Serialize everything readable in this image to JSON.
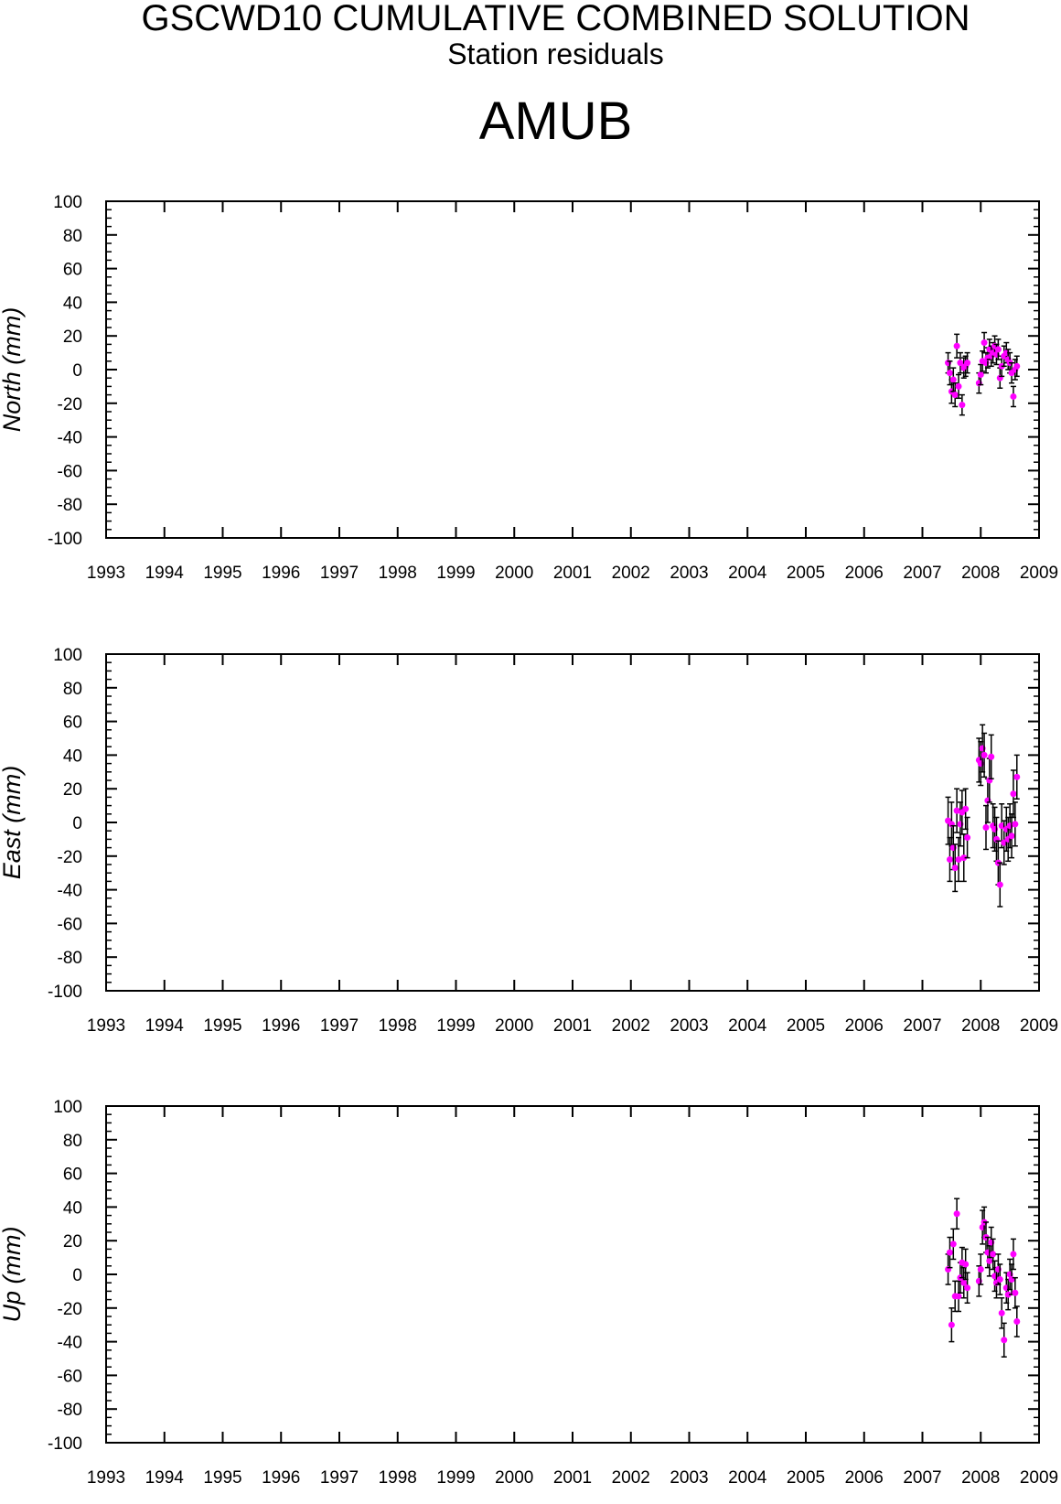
{
  "header": {
    "title": "GSCWD10 CUMULATIVE COMBINED SOLUTION",
    "subtitle": "Station residuals",
    "station": "AMUB"
  },
  "colors": {
    "point": "#ff00ff",
    "errorbar": "#000000",
    "axis": "#000000"
  },
  "chart_data": [
    {
      "type": "scatter",
      "ylabel": "North (mm)",
      "xlim": [
        1993,
        2009
      ],
      "ylim": [
        -100,
        100
      ],
      "xticks": [
        "1993",
        "1994",
        "1995",
        "1996",
        "1997",
        "1998",
        "1999",
        "2000",
        "2001",
        "2002",
        "2003",
        "2004",
        "2005",
        "2006",
        "2007",
        "2008",
        "2009"
      ],
      "yticks": [
        "100",
        "80",
        "60",
        "40",
        "20",
        "0",
        "-20",
        "-40",
        "-60",
        "-80",
        "-100"
      ],
      "points": [
        {
          "x": 2007.44,
          "y": 4,
          "err": 6
        },
        {
          "x": 2007.47,
          "y": -2,
          "err": 7
        },
        {
          "x": 2007.5,
          "y": -13,
          "err": 7
        },
        {
          "x": 2007.53,
          "y": -6,
          "err": 7
        },
        {
          "x": 2007.56,
          "y": -15,
          "err": 7
        },
        {
          "x": 2007.59,
          "y": 14,
          "err": 7
        },
        {
          "x": 2007.62,
          "y": -10,
          "err": 7
        },
        {
          "x": 2007.65,
          "y": 4,
          "err": 6
        },
        {
          "x": 2007.68,
          "y": -21,
          "err": 6
        },
        {
          "x": 2007.71,
          "y": 1,
          "err": 6
        },
        {
          "x": 2007.74,
          "y": 2,
          "err": 6
        },
        {
          "x": 2007.77,
          "y": 4,
          "err": 6
        },
        {
          "x": 2007.97,
          "y": -8,
          "err": 6
        },
        {
          "x": 2008.0,
          "y": -3,
          "err": 6
        },
        {
          "x": 2008.03,
          "y": 5,
          "err": 6
        },
        {
          "x": 2008.06,
          "y": 16,
          "err": 6
        },
        {
          "x": 2008.09,
          "y": 4,
          "err": 6
        },
        {
          "x": 2008.12,
          "y": 7,
          "err": 6
        },
        {
          "x": 2008.15,
          "y": 12,
          "err": 6
        },
        {
          "x": 2008.18,
          "y": 8,
          "err": 6
        },
        {
          "x": 2008.21,
          "y": 10,
          "err": 6
        },
        {
          "x": 2008.24,
          "y": 14,
          "err": 6
        },
        {
          "x": 2008.27,
          "y": 9,
          "err": 6
        },
        {
          "x": 2008.3,
          "y": 12,
          "err": 6
        },
        {
          "x": 2008.33,
          "y": -5,
          "err": 6
        },
        {
          "x": 2008.36,
          "y": 2,
          "err": 6
        },
        {
          "x": 2008.4,
          "y": 8,
          "err": 6
        },
        {
          "x": 2008.44,
          "y": 10,
          "err": 6
        },
        {
          "x": 2008.47,
          "y": 6,
          "err": 6
        },
        {
          "x": 2008.5,
          "y": 4,
          "err": 6
        },
        {
          "x": 2008.53,
          "y": -2,
          "err": 6
        },
        {
          "x": 2008.56,
          "y": -16,
          "err": 6
        },
        {
          "x": 2008.59,
          "y": 0,
          "err": 6
        },
        {
          "x": 2008.62,
          "y": 2,
          "err": 6
        }
      ]
    },
    {
      "type": "scatter",
      "ylabel": "East (mm)",
      "xlim": [
        1993,
        2009
      ],
      "ylim": [
        -100,
        100
      ],
      "xticks": [
        "1993",
        "1994",
        "1995",
        "1996",
        "1997",
        "1998",
        "1999",
        "2000",
        "2001",
        "2002",
        "2003",
        "2004",
        "2005",
        "2006",
        "2007",
        "2008",
        "2009"
      ],
      "yticks": [
        "100",
        "80",
        "60",
        "40",
        "20",
        "0",
        "-20",
        "-40",
        "-60",
        "-80",
        "-100"
      ],
      "points": [
        {
          "x": 2007.44,
          "y": 1,
          "err": 14
        },
        {
          "x": 2007.47,
          "y": -22,
          "err": 13
        },
        {
          "x": 2007.5,
          "y": -1,
          "err": 13
        },
        {
          "x": 2007.53,
          "y": -15,
          "err": 13
        },
        {
          "x": 2007.56,
          "y": -27,
          "err": 14
        },
        {
          "x": 2007.59,
          "y": 7,
          "err": 13
        },
        {
          "x": 2007.62,
          "y": -22,
          "err": 13
        },
        {
          "x": 2007.65,
          "y": -1,
          "err": 13
        },
        {
          "x": 2007.68,
          "y": 6,
          "err": 13
        },
        {
          "x": 2007.71,
          "y": -21,
          "err": 14
        },
        {
          "x": 2007.74,
          "y": 8,
          "err": 12
        },
        {
          "x": 2007.77,
          "y": -9,
          "err": 12
        },
        {
          "x": 2007.97,
          "y": 37,
          "err": 13
        },
        {
          "x": 2008.0,
          "y": 35,
          "err": 13
        },
        {
          "x": 2008.03,
          "y": 44,
          "err": 14
        },
        {
          "x": 2008.06,
          "y": 40,
          "err": 13
        },
        {
          "x": 2008.09,
          "y": -3,
          "err": 13
        },
        {
          "x": 2008.12,
          "y": 13,
          "err": 13
        },
        {
          "x": 2008.15,
          "y": 25,
          "err": 13
        },
        {
          "x": 2008.18,
          "y": 39,
          "err": 13
        },
        {
          "x": 2008.21,
          "y": -2,
          "err": 13
        },
        {
          "x": 2008.24,
          "y": -4,
          "err": 13
        },
        {
          "x": 2008.27,
          "y": -10,
          "err": 13
        },
        {
          "x": 2008.3,
          "y": -24,
          "err": 13
        },
        {
          "x": 2008.33,
          "y": -37,
          "err": 13
        },
        {
          "x": 2008.36,
          "y": -2,
          "err": 13
        },
        {
          "x": 2008.4,
          "y": -12,
          "err": 13
        },
        {
          "x": 2008.44,
          "y": -4,
          "err": 13
        },
        {
          "x": 2008.47,
          "y": -10,
          "err": 13
        },
        {
          "x": 2008.5,
          "y": -2,
          "err": 13
        },
        {
          "x": 2008.53,
          "y": -8,
          "err": 13
        },
        {
          "x": 2008.56,
          "y": 17,
          "err": 14
        },
        {
          "x": 2008.59,
          "y": -1,
          "err": 13
        },
        {
          "x": 2008.62,
          "y": 27,
          "err": 13
        }
      ]
    },
    {
      "type": "scatter",
      "ylabel": "Up (mm)",
      "xlim": [
        1993,
        2009
      ],
      "ylim": [
        -100,
        100
      ],
      "xticks": [
        "1993",
        "1994",
        "1995",
        "1996",
        "1997",
        "1998",
        "1999",
        "2000",
        "2001",
        "2002",
        "2003",
        "2004",
        "2005",
        "2006",
        "2007",
        "2008",
        "2009"
      ],
      "yticks": [
        "100",
        "80",
        "60",
        "40",
        "20",
        "0",
        "-20",
        "-40",
        "-60",
        "-80",
        "-100"
      ],
      "points": [
        {
          "x": 2007.44,
          "y": 3,
          "err": 9
        },
        {
          "x": 2007.47,
          "y": 13,
          "err": 9
        },
        {
          "x": 2007.5,
          "y": -30,
          "err": 10
        },
        {
          "x": 2007.53,
          "y": 18,
          "err": 9
        },
        {
          "x": 2007.56,
          "y": -13,
          "err": 9
        },
        {
          "x": 2007.59,
          "y": 36,
          "err": 9
        },
        {
          "x": 2007.62,
          "y": -13,
          "err": 9
        },
        {
          "x": 2007.65,
          "y": -2,
          "err": 9
        },
        {
          "x": 2007.68,
          "y": 7,
          "err": 9
        },
        {
          "x": 2007.71,
          "y": -5,
          "err": 9
        },
        {
          "x": 2007.74,
          "y": 6,
          "err": 9
        },
        {
          "x": 2007.77,
          "y": -8,
          "err": 9
        },
        {
          "x": 2007.97,
          "y": -4,
          "err": 9
        },
        {
          "x": 2008.0,
          "y": 3,
          "err": 9
        },
        {
          "x": 2008.03,
          "y": 28,
          "err": 10
        },
        {
          "x": 2008.06,
          "y": 31,
          "err": 9
        },
        {
          "x": 2008.09,
          "y": 22,
          "err": 9
        },
        {
          "x": 2008.12,
          "y": 13,
          "err": 9
        },
        {
          "x": 2008.15,
          "y": 8,
          "err": 9
        },
        {
          "x": 2008.18,
          "y": 19,
          "err": 9
        },
        {
          "x": 2008.21,
          "y": 12,
          "err": 9
        },
        {
          "x": 2008.24,
          "y": -1,
          "err": 9
        },
        {
          "x": 2008.27,
          "y": -5,
          "err": 9
        },
        {
          "x": 2008.3,
          "y": 3,
          "err": 9
        },
        {
          "x": 2008.33,
          "y": -3,
          "err": 9
        },
        {
          "x": 2008.36,
          "y": -23,
          "err": 9
        },
        {
          "x": 2008.4,
          "y": -39,
          "err": 10
        },
        {
          "x": 2008.44,
          "y": -8,
          "err": 9
        },
        {
          "x": 2008.47,
          "y": -12,
          "err": 9
        },
        {
          "x": 2008.5,
          "y": 0,
          "err": 9
        },
        {
          "x": 2008.53,
          "y": -3,
          "err": 9
        },
        {
          "x": 2008.56,
          "y": 12,
          "err": 9
        },
        {
          "x": 2008.59,
          "y": -11,
          "err": 9
        },
        {
          "x": 2008.62,
          "y": -28,
          "err": 9
        }
      ]
    }
  ]
}
